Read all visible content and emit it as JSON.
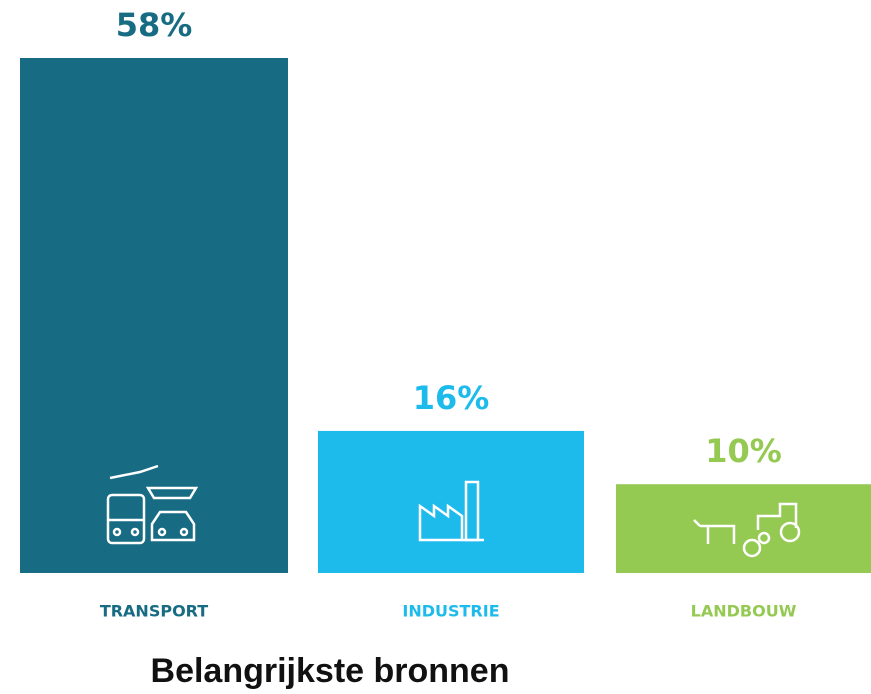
{
  "chart_data": {
    "type": "bar",
    "title": "Belangrijkste bronnen",
    "categories": [
      "TRANSPORT",
      "INDUSTRIE",
      "LANDBOUW"
    ],
    "values": [
      58,
      16,
      10
    ],
    "value_labels": [
      "58%",
      "16%",
      "10%"
    ],
    "colors": [
      "#176b82",
      "#1dbbeb",
      "#94c952"
    ]
  }
}
